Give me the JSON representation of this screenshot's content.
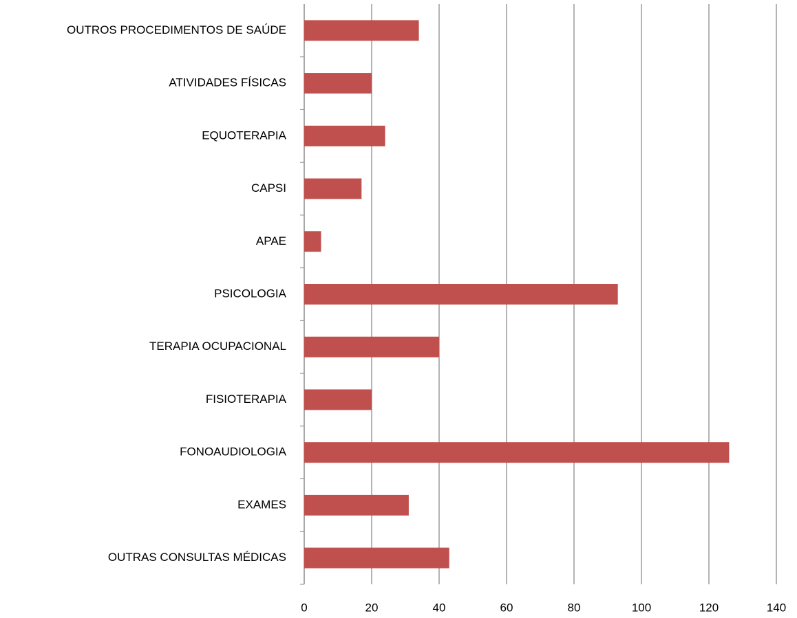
{
  "chart_data": {
    "type": "bar",
    "orientation": "horizontal",
    "categories": [
      "OUTRAS CONSULTAS MÉDICAS",
      "EXAMES",
      "FONOAUDIOLOGIA",
      "FISIOTERAPIA",
      "TERAPIA OCUPACIONAL",
      "PSICOLOGIA",
      "APAE",
      "CAPSI",
      "EQUOTERAPIA",
      "ATIVIDADES FÍSICAS",
      "OUTROS PROCEDIMENTOS DE SAÚDE"
    ],
    "values": [
      43,
      31,
      126,
      20,
      40,
      93,
      5,
      17,
      24,
      20,
      34
    ],
    "color": "#c0504d",
    "xlim": [
      0,
      140
    ],
    "xticks": [
      0,
      20,
      40,
      60,
      80,
      100,
      120,
      140
    ],
    "grid": true
  }
}
